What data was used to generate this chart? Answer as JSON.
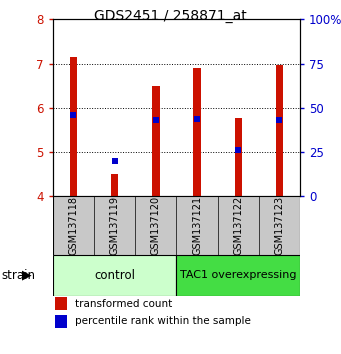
{
  "title": "GDS2451 / 258871_at",
  "samples": [
    "GSM137118",
    "GSM137119",
    "GSM137120",
    "GSM137121",
    "GSM137122",
    "GSM137123"
  ],
  "transformed_counts": [
    7.15,
    4.5,
    6.5,
    6.9,
    5.78,
    6.97
  ],
  "percentile_ranks": [
    46,
    20,
    43,
    44,
    26,
    43
  ],
  "ymin": 4,
  "ymax": 8,
  "y2min": 0,
  "y2max": 100,
  "bar_color": "#cc1100",
  "dot_color": "#0000cc",
  "group0_color": "#ccffcc",
  "group1_color": "#44dd44",
  "tick_color_left": "#cc1100",
  "tick_color_right": "#0000cc",
  "bar_width": 0.18,
  "bar_bottom": 4.0,
  "dot_size": 25,
  "label_area_color": "#c8c8c8"
}
